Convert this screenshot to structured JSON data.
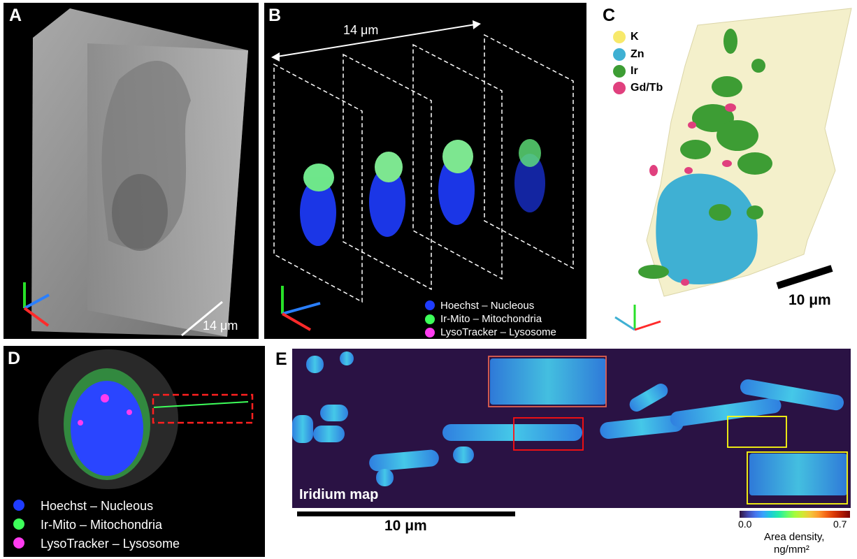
{
  "panels": {
    "a": {
      "label": "A",
      "scale": "14 μm"
    },
    "b": {
      "label": "B",
      "scale": "14 μm",
      "legend": [
        {
          "text": "Hoechst – Nucleous",
          "color": "#1f3cff"
        },
        {
          "text": "Ir-Mito – Mitochondria",
          "color": "#3dff5a"
        },
        {
          "text": "LysoTracker – Lysosome",
          "color": "#ff3cf0"
        }
      ]
    },
    "c": {
      "label": "C",
      "scale": "10 μm",
      "legend": [
        {
          "text": "K",
          "color": "#f7e96b"
        },
        {
          "text": "Zn",
          "color": "#3fb0d3"
        },
        {
          "text": "Ir",
          "color": "#3d9d34"
        },
        {
          "text": "Gd/Tb",
          "color": "#e0407e"
        }
      ]
    },
    "d": {
      "label": "D",
      "legend": [
        {
          "text": "Hoechst – Nucleous",
          "color": "#1f3cff"
        },
        {
          "text": "Ir-Mito – Mitochondria",
          "color": "#3dff5a"
        },
        {
          "text": "LysoTracker – Lysosome",
          "color": "#ff3cf0"
        }
      ]
    },
    "e": {
      "label": "E",
      "map_title": "Iridium map",
      "scale": "10 μm",
      "colorbar_min": "0.0",
      "colorbar_max": "0.7",
      "colorbar_unit_1": "Area density,",
      "colorbar_unit_2": "ng/mm²"
    }
  }
}
